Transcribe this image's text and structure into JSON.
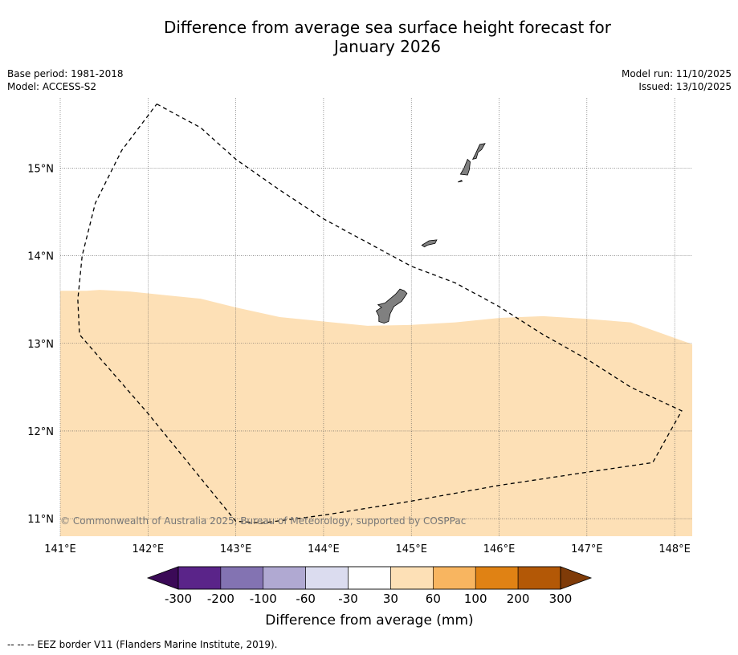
{
  "title": {
    "line1": "Difference from average sea surface height forecast for",
    "line2": "January 2026"
  },
  "meta": {
    "base_period": "Base period: 1981-2018",
    "model": "Model: ACCESS-S2",
    "model_run": "Model run: 11/10/2025",
    "issued": "Issued: 13/10/2025"
  },
  "map": {
    "lon_range": [
      141.0,
      148.2
    ],
    "lat_range": [
      10.8,
      15.8
    ],
    "lon_ticks": [
      141,
      142,
      143,
      144,
      145,
      146,
      147,
      148
    ],
    "lat_ticks": [
      11,
      12,
      13,
      14,
      15
    ],
    "lon_labels": [
      "141°E",
      "142°E",
      "143°E",
      "144°E",
      "145°E",
      "146°E",
      "147°E",
      "148°E"
    ],
    "lat_labels": [
      "11°N",
      "12°N",
      "13°N",
      "14°N",
      "15°N"
    ],
    "anomaly_fill_color": "#fde0b6",
    "anomaly_boundary": [
      [
        141.0,
        13.6
      ],
      [
        141.3,
        13.6
      ],
      [
        141.45,
        13.61
      ],
      [
        141.8,
        13.59
      ],
      [
        142.2,
        13.55
      ],
      [
        142.6,
        13.51
      ],
      [
        143.0,
        13.41
      ],
      [
        143.5,
        13.3
      ],
      [
        144.0,
        13.25
      ],
      [
        144.5,
        13.2
      ],
      [
        145.0,
        13.21
      ],
      [
        145.5,
        13.24
      ],
      [
        146.0,
        13.29
      ],
      [
        146.5,
        13.31
      ],
      [
        147.0,
        13.28
      ],
      [
        147.5,
        13.24
      ],
      [
        148.2,
        12.99
      ]
    ],
    "land_color": "#808080",
    "islands": [
      {
        "name": "Guam",
        "outline": [
          [
            144.62,
            13.44
          ],
          [
            144.7,
            13.46
          ],
          [
            144.82,
            13.56
          ],
          [
            144.87,
            13.62
          ],
          [
            144.92,
            13.6
          ],
          [
            144.95,
            13.57
          ],
          [
            144.89,
            13.48
          ],
          [
            144.8,
            13.42
          ],
          [
            144.76,
            13.34
          ],
          [
            144.74,
            13.25
          ],
          [
            144.69,
            13.23
          ],
          [
            144.63,
            13.25
          ],
          [
            144.63,
            13.31
          ],
          [
            144.6,
            13.37
          ],
          [
            144.66,
            13.41
          ]
        ]
      },
      {
        "name": "Rota",
        "outline": [
          [
            145.12,
            14.12
          ],
          [
            145.2,
            14.17
          ],
          [
            145.29,
            14.18
          ],
          [
            145.27,
            14.14
          ],
          [
            145.18,
            14.12
          ],
          [
            145.15,
            14.1
          ]
        ]
      },
      {
        "name": "Tinian",
        "outline": [
          [
            145.56,
            14.93
          ],
          [
            145.6,
            15.0
          ],
          [
            145.64,
            15.1
          ],
          [
            145.67,
            15.07
          ],
          [
            145.66,
            14.98
          ],
          [
            145.64,
            14.92
          ]
        ]
      },
      {
        "name": "Saipan",
        "outline": [
          [
            145.7,
            15.1
          ],
          [
            145.73,
            15.16
          ],
          [
            145.78,
            15.27
          ],
          [
            145.84,
            15.28
          ],
          [
            145.8,
            15.21
          ],
          [
            145.76,
            15.18
          ],
          [
            145.74,
            15.11
          ]
        ]
      },
      {
        "name": "Aguijan",
        "outline": [
          [
            145.53,
            14.84
          ],
          [
            145.57,
            14.86
          ],
          [
            145.58,
            14.85
          ]
        ]
      }
    ],
    "eez_border": [
      [
        142.1,
        15.73
      ],
      [
        142.6,
        15.46
      ],
      [
        143.0,
        15.1
      ],
      [
        143.5,
        14.75
      ],
      [
        144.0,
        14.42
      ],
      [
        145.0,
        13.88
      ],
      [
        145.5,
        13.69
      ],
      [
        146.0,
        13.42
      ],
      [
        146.5,
        13.1
      ],
      [
        147.0,
        12.82
      ],
      [
        147.5,
        12.5
      ],
      [
        148.08,
        12.23
      ],
      [
        147.75,
        11.64
      ],
      [
        147.0,
        11.53
      ],
      [
        146.0,
        11.38
      ],
      [
        145.0,
        11.2
      ],
      [
        144.0,
        11.04
      ],
      [
        143.3,
        10.95
      ],
      [
        143.0,
        10.97
      ],
      [
        142.0,
        12.2
      ],
      [
        141.22,
        13.1
      ],
      [
        141.2,
        13.5
      ],
      [
        141.25,
        14.0
      ],
      [
        141.4,
        14.6
      ],
      [
        141.7,
        15.2
      ],
      [
        142.1,
        15.73
      ]
    ],
    "copyright": "© Commonwealth of Australia 2025, Bureau of Meteorology, supported by COSPPac"
  },
  "colorbar": {
    "colors": [
      "#3b0a57",
      "#5a2489",
      "#8373b2",
      "#b0a9d2",
      "#dbdcef",
      "#ffffff",
      "#fde0b6",
      "#f8b560",
      "#e08214",
      "#b35806",
      "#7f3b08"
    ],
    "tick_labels": [
      "-300",
      "-200",
      "-100",
      "-60",
      "-30",
      "30",
      "60",
      "100",
      "200",
      "300"
    ],
    "label": "Difference from average (mm)"
  },
  "footnote": "--  --  -- EEZ border V11 (Flanders Marine Institute, 2019)."
}
